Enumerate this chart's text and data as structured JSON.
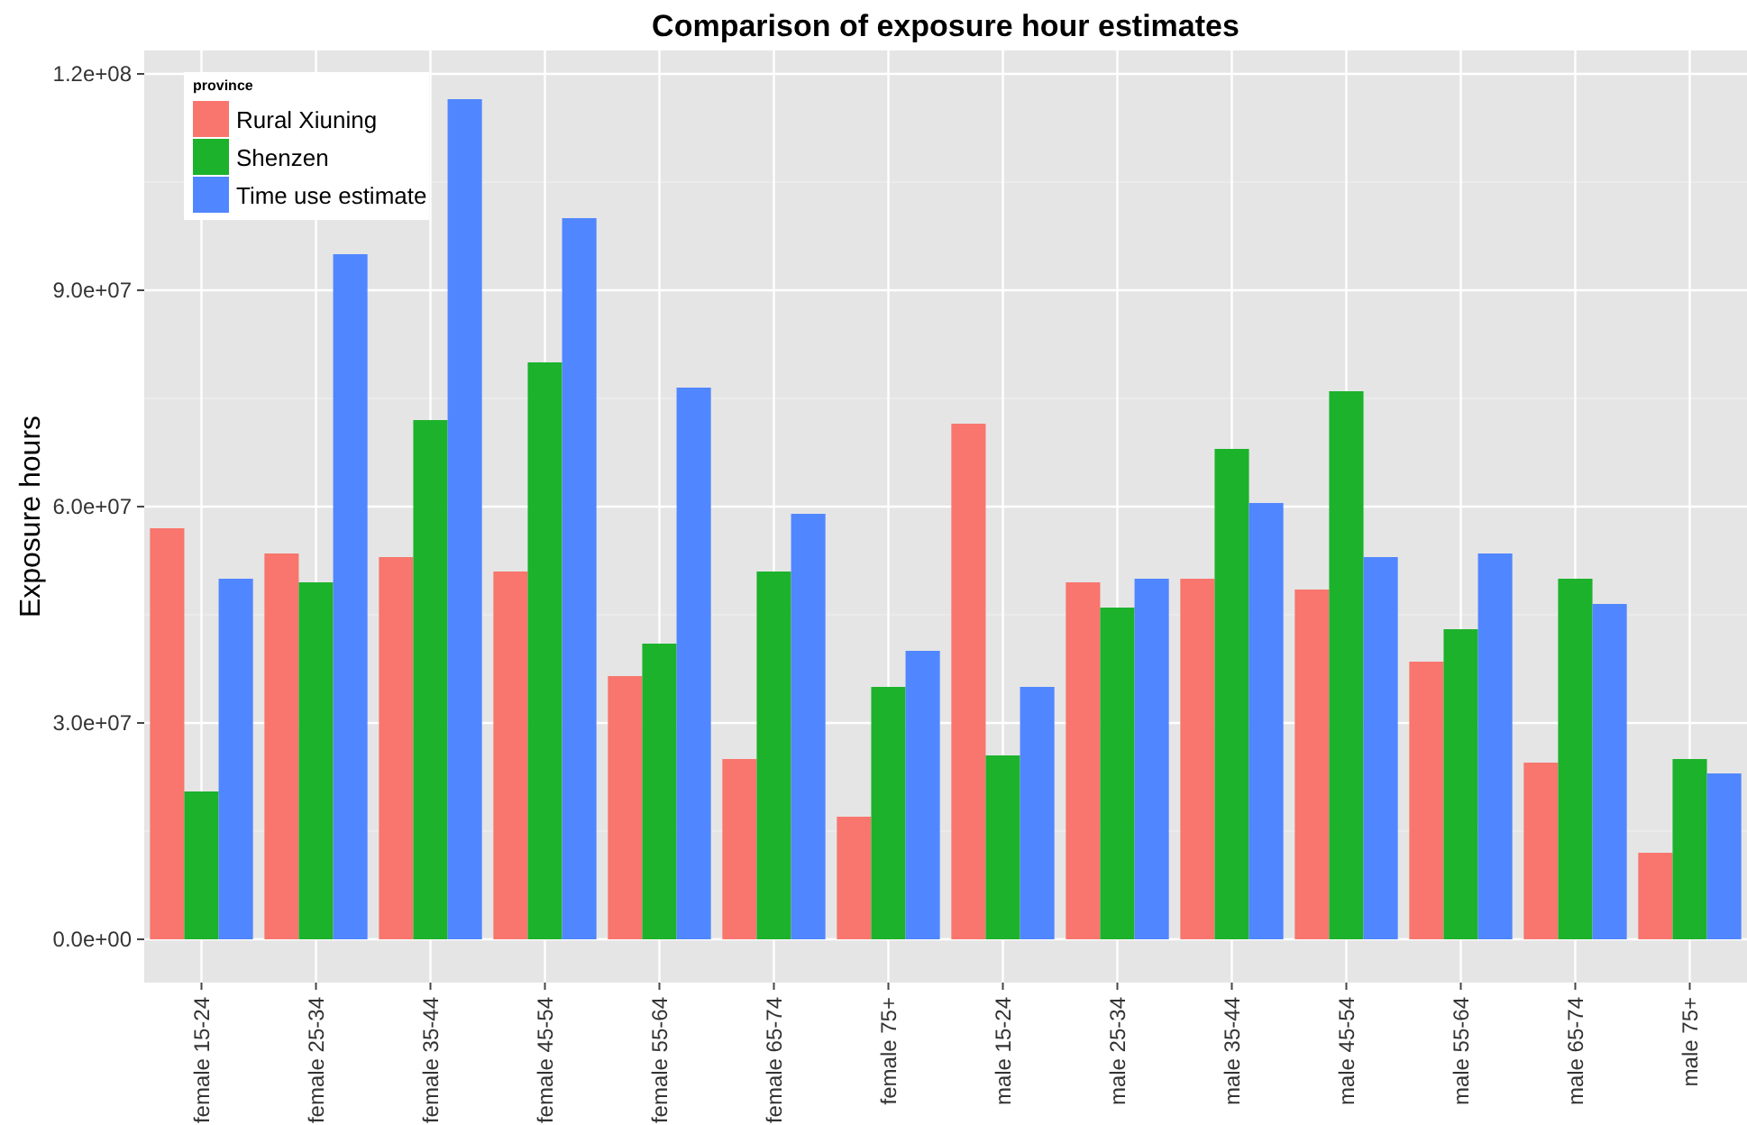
{
  "chart_data": {
    "type": "bar",
    "title": "Comparison of exposure hour estimates",
    "ylabel": "Exposure hours",
    "legend_title": "province",
    "categories": [
      "female 15-24",
      "female 25-34",
      "female 35-44",
      "female 45-54",
      "female 55-64",
      "female 65-74",
      "female 75+",
      "male 15-24",
      "male 25-34",
      "male 35-44",
      "male 45-54",
      "male 55-64",
      "male 65-74",
      "male 75+"
    ],
    "series": [
      {
        "name": "Rural Xiuning",
        "color": "#f8766d",
        "values": [
          57000000,
          53500000,
          53000000,
          51000000,
          36500000,
          25000000,
          17000000,
          71500000,
          49500000,
          50000000,
          48500000,
          38500000,
          24500000,
          12000000
        ]
      },
      {
        "name": "Shenzen",
        "color": "#1cb22c",
        "values": [
          20500000,
          49500000,
          72000000,
          80000000,
          41000000,
          51000000,
          35000000,
          25500000,
          46000000,
          68000000,
          76000000,
          43000000,
          50000000,
          25000000
        ]
      },
      {
        "name": "Time use estimate",
        "color": "#5086ff",
        "values": [
          50000000,
          95000000,
          116500000,
          100000000,
          76500000,
          59000000,
          40000000,
          35000000,
          50000000,
          60500000,
          53000000,
          53500000,
          46500000,
          23000000
        ]
      }
    ],
    "ylim": [
      -6000000,
      123250000
    ],
    "yticks": [
      {
        "value": 0,
        "label": "0.0e+00"
      },
      {
        "value": 30000000,
        "label": "3.0e+07"
      },
      {
        "value": 60000000,
        "label": "6.0e+07"
      },
      {
        "value": 90000000,
        "label": "9.0e+07"
      },
      {
        "value": 120000000,
        "label": "1.2e+08"
      }
    ],
    "grid": true,
    "legend": "top left"
  }
}
